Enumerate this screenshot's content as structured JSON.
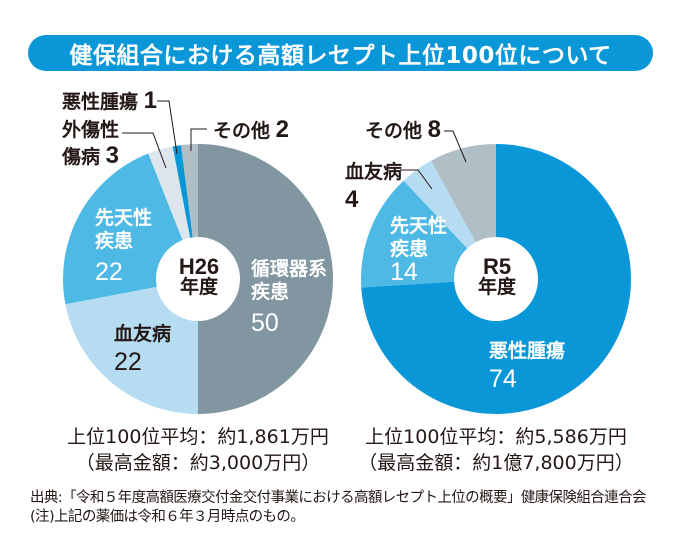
{
  "title": "健保組合における高額レセプト上位100位について",
  "colors": {
    "banner": "#0a97d8",
    "circulatory": "#8196a0",
    "hemophilia": "#b6dcf2",
    "congenital": "#4fb9e5",
    "trauma": "#dde6ec",
    "malignant": "#0a97d8",
    "other": "#b0bfc6"
  },
  "chart_data": [
    {
      "type": "pie",
      "title": "H26年度",
      "center_label": {
        "line1": "H26",
        "line2": "年度"
      },
      "start": "12 o'clock, clockwise",
      "slices": [
        {
          "label": "循環器系疾患",
          "label_lines": [
            "循環器系",
            "疾患"
          ],
          "value": 50,
          "value_label": "50",
          "color_key": "circulatory"
        },
        {
          "label": "血友病",
          "label_lines": [
            "血友病"
          ],
          "value": 22,
          "value_label": "22",
          "color_key": "hemophilia"
        },
        {
          "label": "先天性疾患",
          "label_lines": [
            "先天性",
            "疾患"
          ],
          "value": 22,
          "value_label": "22",
          "color_key": "congenital"
        },
        {
          "label": "外傷性傷病",
          "label_lines": [
            "外傷性",
            "傷病"
          ],
          "value": 3,
          "value_label": "3",
          "color_key": "trauma"
        },
        {
          "label": "悪性腫瘍",
          "label_lines": [
            "悪性腫瘍"
          ],
          "value": 1,
          "value_label": "1",
          "color_key": "malignant"
        },
        {
          "label": "その他",
          "label_lines": [
            "その他"
          ],
          "value": 2,
          "value_label": "2",
          "color_key": "other"
        }
      ],
      "summary": {
        "average": "上位100位平均：約1,861万円",
        "max": "（最高金額：約3,000万円）"
      }
    },
    {
      "type": "pie",
      "title": "R5年度",
      "center_label": {
        "line1": "R5",
        "line2": "年度"
      },
      "start": "12 o'clock, clockwise",
      "slices": [
        {
          "label": "悪性腫瘍",
          "label_lines": [
            "悪性腫瘍"
          ],
          "value": 74,
          "value_label": "74",
          "color_key": "malignant"
        },
        {
          "label": "先天性疾患",
          "label_lines": [
            "先天性",
            "疾患"
          ],
          "value": 14,
          "value_label": "14",
          "color_key": "congenital"
        },
        {
          "label": "血友病",
          "label_lines": [
            "血友病"
          ],
          "value": 4,
          "value_label": "4",
          "color_key": "hemophilia"
        },
        {
          "label": "その他",
          "label_lines": [
            "その他"
          ],
          "value": 8,
          "value_label": "8",
          "color_key": "other"
        }
      ],
      "summary": {
        "average": "上位100位平均：約5,586万円",
        "max": "（最高金額：約1億7,800万円）"
      }
    }
  ],
  "source": {
    "line1": "出典:「令和５年度高額医療交付金交付事業における高額レセプト上位の概要」健康保険組合連合会",
    "line2": "(注)上記の薬価は令和６年３月時点のもの。"
  }
}
